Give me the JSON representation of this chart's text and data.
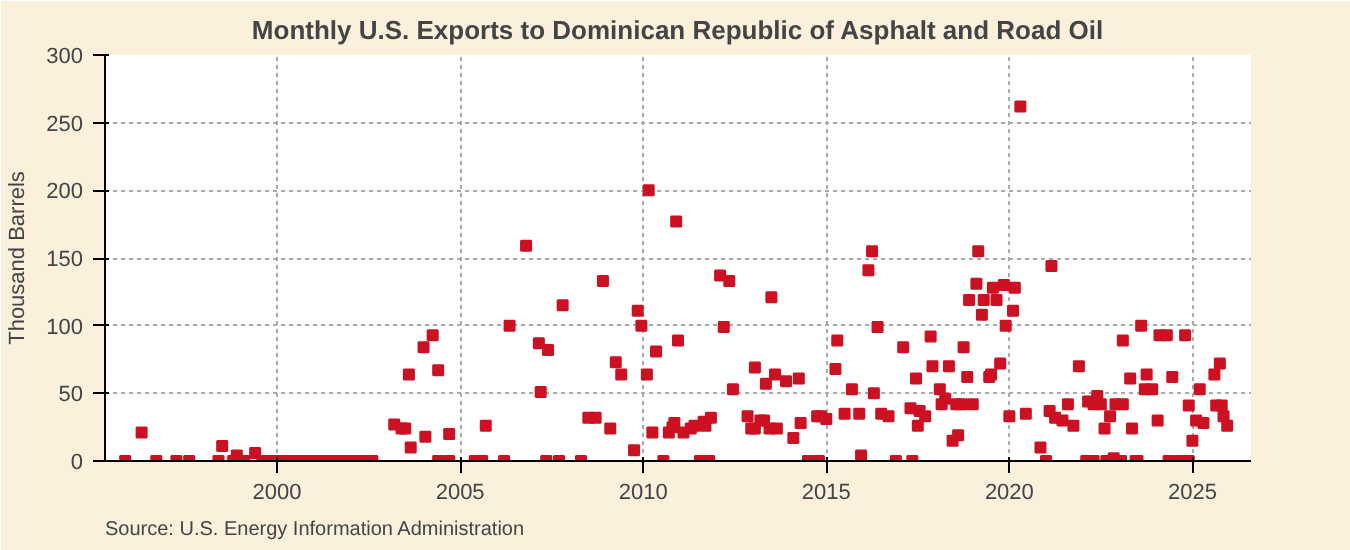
{
  "chart_data": {
    "type": "scatter",
    "title": "Monthly U.S. Exports to Dominican Republic of Asphalt and Road Oil",
    "ylabel": "Thousand Barrels",
    "annotations": [
      "Source: U.S. Energy Information Administration"
    ],
    "x": [
      1995.85,
      1996.3,
      1996.7,
      1997.25,
      1997.6,
      1998.4,
      1998.5,
      1998.8,
      1998.9,
      1999.1,
      1999.4,
      1999.6,
      1999.8,
      2000.0,
      2000.2,
      2000.4,
      2000.6,
      2000.8,
      2001.0,
      2001.2,
      2001.4,
      2001.6,
      2001.8,
      2002.0,
      2002.2,
      2002.4,
      2002.6,
      2003.2,
      2003.4,
      2003.5,
      2003.6,
      2003.65,
      2004.0,
      2004.05,
      2004.25,
      2004.4,
      2004.4,
      2004.7,
      2004.7,
      2005.4,
      2005.6,
      2005.7,
      2006.2,
      2006.35,
      2006.8,
      2007.15,
      2007.2,
      2007.35,
      2007.4,
      2007.7,
      2007.8,
      2008.3,
      2008.5,
      2008.7,
      2008.9,
      2009.1,
      2009.25,
      2009.4,
      2009.75,
      2009.85,
      2009.95,
      2010.1,
      2010.15,
      2010.25,
      2010.35,
      2010.55,
      2010.7,
      2010.8,
      2010.85,
      2010.9,
      2010.95,
      2011.1,
      2011.3,
      2011.4,
      2011.55,
      2011.65,
      2011.7,
      2011.8,
      2011.85,
      2012.1,
      2012.2,
      2012.35,
      2012.45,
      2012.85,
      2012.95,
      2013.05,
      2013.05,
      2013.2,
      2013.3,
      2013.35,
      2013.45,
      2013.5,
      2013.6,
      2013.65,
      2013.9,
      2014.1,
      2014.25,
      2014.3,
      2014.5,
      2014.75,
      2014.8,
      2014.85,
      2015.0,
      2015.25,
      2015.3,
      2015.5,
      2015.7,
      2015.9,
      2015.95,
      2016.15,
      2016.25,
      2016.3,
      2016.4,
      2016.5,
      2016.7,
      2016.9,
      2017.1,
      2017.3,
      2017.35,
      2017.45,
      2017.5,
      2017.55,
      2017.7,
      2017.85,
      2017.9,
      2018.1,
      2018.15,
      2018.25,
      2018.35,
      2018.45,
      2018.55,
      2018.6,
      2018.7,
      2018.75,
      2018.85,
      2018.9,
      2019.0,
      2019.1,
      2019.15,
      2019.25,
      2019.3,
      2019.45,
      2019.5,
      2019.55,
      2019.65,
      2019.75,
      2019.85,
      2019.9,
      2020.0,
      2020.1,
      2020.15,
      2020.3,
      2020.45,
      2020.85,
      2021.0,
      2021.1,
      2021.15,
      2021.25,
      2021.45,
      2021.6,
      2021.75,
      2021.9,
      2022.1,
      2022.15,
      2022.3,
      2022.3,
      2022.4,
      2022.5,
      2022.6,
      2022.65,
      2022.75,
      2022.85,
      2022.9,
      2023.05,
      2023.1,
      2023.1,
      2023.3,
      2023.35,
      2023.45,
      2023.5,
      2023.6,
      2023.7,
      2023.75,
      2023.9,
      2024.05,
      2024.1,
      2024.3,
      2024.35,
      2024.45,
      2024.65,
      2024.8,
      2024.9,
      2024.9,
      2025.0,
      2025.1,
      2025.2,
      2025.3,
      2025.6,
      2025.65,
      2025.75,
      2025.8,
      2025.85,
      2025.95
    ],
    "series": [
      {
        "color": "#cc1122",
        "values": [
          0,
          21,
          0,
          0,
          0,
          0,
          11,
          0,
          4,
          0,
          6,
          0,
          0,
          0,
          0,
          0,
          0,
          0,
          0,
          0,
          0,
          0,
          0,
          0,
          0,
          0,
          0,
          27,
          24,
          24,
          64,
          10,
          84,
          18,
          93,
          67,
          0,
          0,
          20,
          0,
          0,
          26,
          0,
          100,
          159,
          87,
          51,
          0,
          82,
          0,
          115,
          0,
          32,
          32,
          133,
          24,
          73,
          64,
          8,
          111,
          100,
          64,
          200,
          21,
          81,
          0,
          21,
          25,
          28,
          177,
          89,
          21,
          24,
          26,
          0,
          29,
          26,
          0,
          32,
          137,
          99,
          133,
          53,
          33,
          24,
          24,
          69,
          30,
          30,
          57,
          24,
          121,
          64,
          24,
          59,
          17,
          61,
          28,
          0,
          33,
          0,
          33,
          31,
          68,
          89,
          35,
          53,
          35,
          4,
          141,
          155,
          50,
          99,
          35,
          33,
          0,
          84,
          39,
          0,
          61,
          26,
          37,
          33,
          92,
          70,
          53,
          42,
          46,
          70,
          15,
          42,
          19,
          42,
          84,
          62,
          119,
          42,
          131,
          155,
          108,
          119,
          62,
          64,
          128,
          119,
          72,
          130,
          100,
          33,
          111,
          128,
          262,
          35,
          10,
          0,
          37,
          144,
          32,
          30,
          42,
          26,
          70,
          0,
          44,
          0,
          42,
          48,
          42,
          24,
          0,
          33,
          2,
          42,
          0,
          42,
          89,
          61,
          24,
          0,
          0,
          100,
          53,
          64,
          53,
          30,
          93,
          93,
          0,
          62,
          0,
          93,
          0,
          41,
          15,
          30,
          53,
          28,
          64,
          41,
          72,
          41,
          33,
          26
        ]
      }
    ],
    "marker": "square",
    "xlim": [
      1995.3,
      2026.6
    ],
    "ylim": [
      0,
      300
    ],
    "xticks": [
      2000,
      2005,
      2010,
      2015,
      2020,
      2025
    ],
    "yticks": [
      0,
      50,
      100,
      150,
      200,
      250,
      300
    ],
    "grid": true
  }
}
